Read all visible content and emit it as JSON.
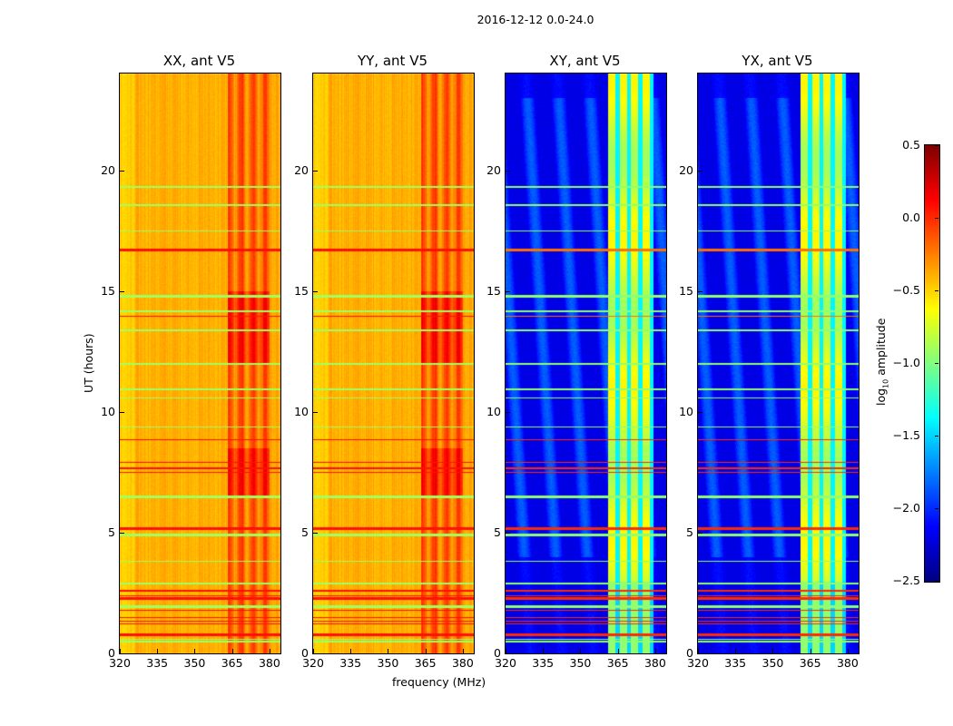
{
  "chart_data": {
    "type": "heatmap",
    "title": "2016-12-12 0.0-24.0",
    "xlabel": "frequency (MHz)",
    "ylabel": "UT (hours)",
    "xlim": [
      320,
      384.4
    ],
    "ylim": [
      0,
      24
    ],
    "xticks": [
      "320",
      "335",
      "350",
      "365",
      "380"
    ],
    "xtick_values": [
      320,
      335,
      350,
      365,
      380
    ],
    "yticks": [
      "0",
      "5",
      "10",
      "15",
      "20"
    ],
    "ytick_values": [
      0,
      5,
      10,
      15,
      20
    ],
    "panels": [
      {
        "title": "XX, ant V5",
        "kind": "auto",
        "typical_log10_amplitude": -0.45,
        "bright_band_MHz": [
          363,
          380
        ]
      },
      {
        "title": "YY, ant V5",
        "kind": "auto",
        "typical_log10_amplitude": -0.45,
        "bright_band_MHz": [
          363,
          380
        ]
      },
      {
        "title": "XY, ant V5",
        "kind": "cross",
        "typical_log10_amplitude": -2.2,
        "bright_band_MHz": [
          361,
          379
        ]
      },
      {
        "title": "YX, ant V5",
        "kind": "cross",
        "typical_log10_amplitude": -2.2,
        "bright_band_MHz": [
          361,
          379
        ]
      }
    ],
    "colorbar": {
      "label": "log10 amplitude",
      "label_main": "log",
      "label_sub": "10",
      "label_rest": " amplitude",
      "colormap": "jet",
      "clim": [
        -2.5,
        0.5
      ],
      "ticks": [
        "0.5",
        "0.0",
        "−0.5",
        "−1.0",
        "−1.5",
        "−2.0",
        "−2.5"
      ],
      "tick_values": [
        0.5,
        0.0,
        -0.5,
        -1.0,
        -1.5,
        -2.0,
        -2.5
      ]
    }
  }
}
